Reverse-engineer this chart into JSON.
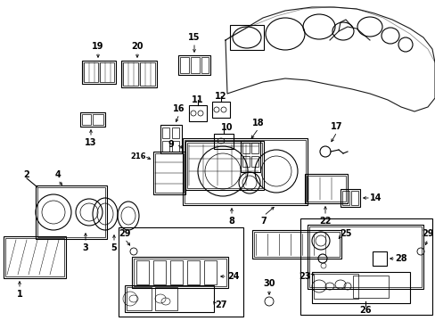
{
  "bg_color": "#ffffff",
  "line_color": "#1a1a1a",
  "fig_width": 4.89,
  "fig_height": 3.6,
  "dpi": 100,
  "label_fs": 7,
  "lw": 0.8
}
